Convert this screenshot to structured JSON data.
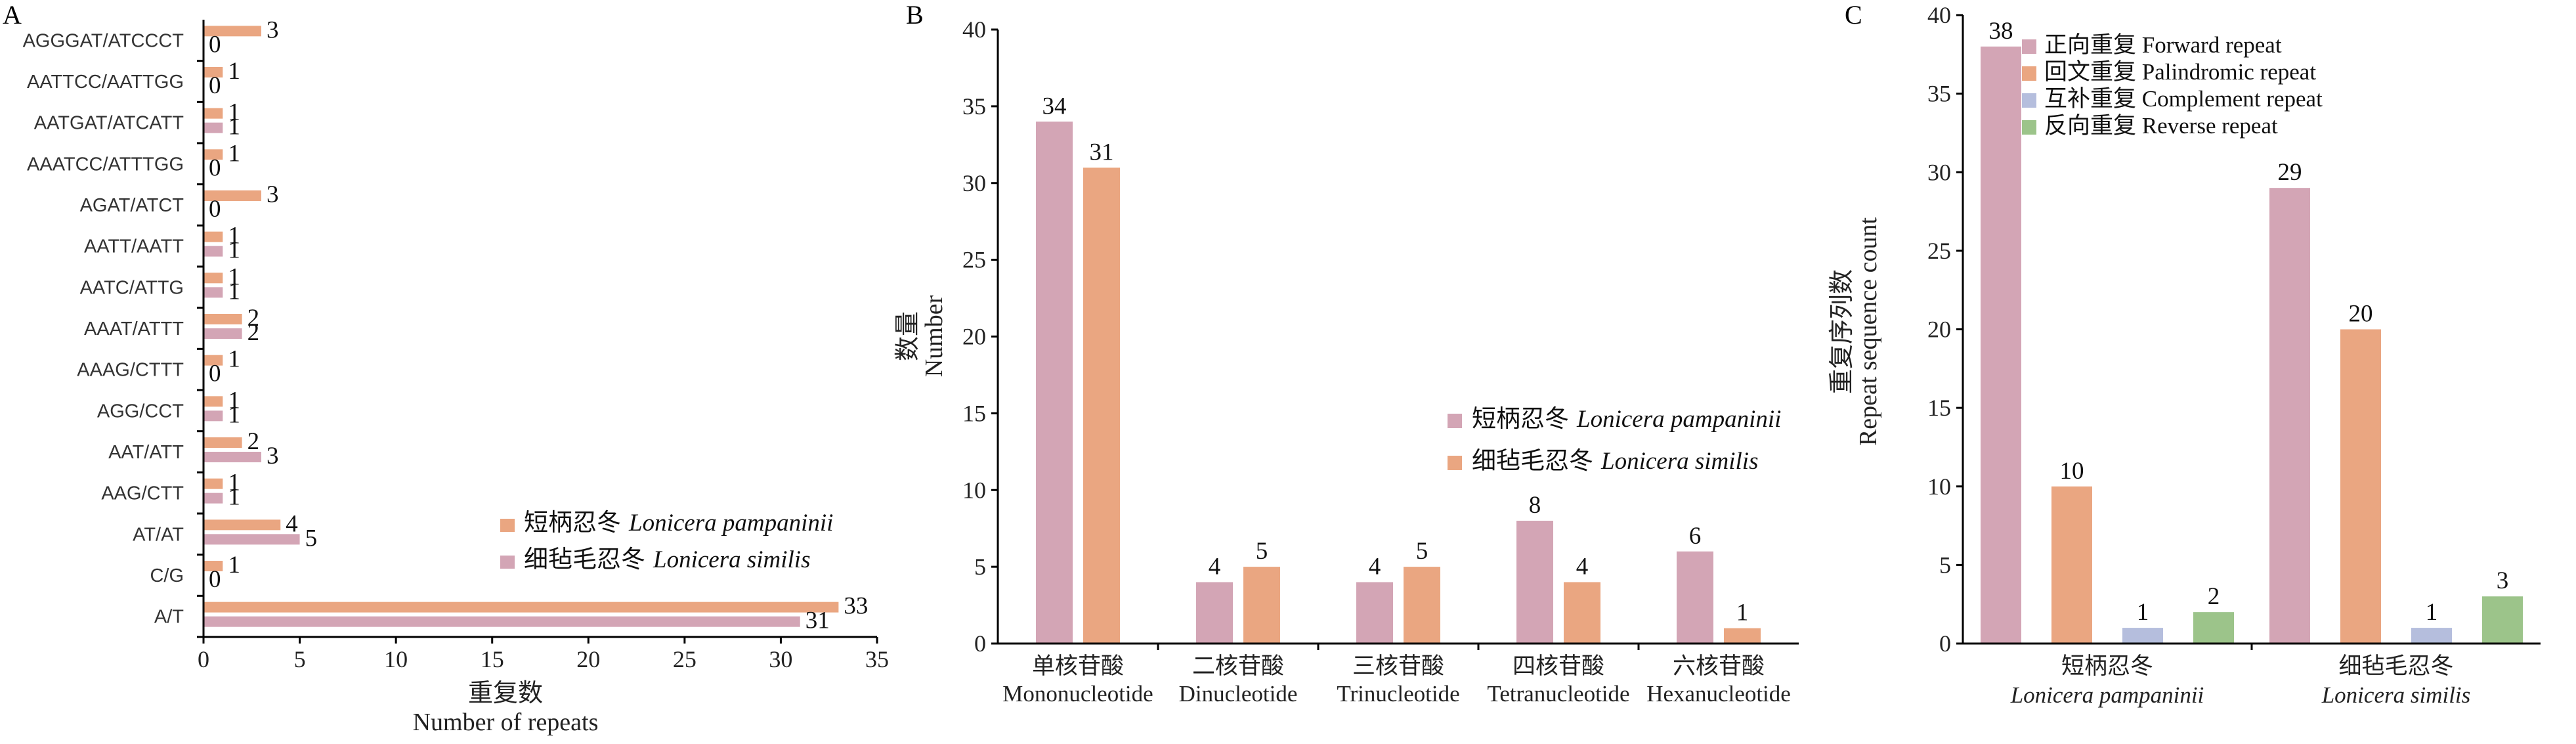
{
  "panels": [
    {
      "letter": "A"
    },
    {
      "letter": "B"
    },
    {
      "letter": "C"
    }
  ],
  "chart_data": [
    {
      "type": "bar",
      "orientation": "horizontal",
      "categories": [
        "A/T",
        "C/G",
        "AT/AT",
        "AAG/CTT",
        "AAT/ATT",
        "AGG/CCT",
        "AAAG/CTTT",
        "AAAT/ATTT",
        "AATC/ATTG",
        "AATT/AATT",
        "AGAT/ATCT",
        "AAATCC/ATTTGG",
        "AATGAT/ATCATT",
        "AATTCC/AATTGG",
        "AGGGAT/ATCCCT"
      ],
      "series": [
        {
          "name": "短柄忍冬 Lonicera pampaninii",
          "name_cn": "短柄忍冬",
          "name_latin": "Lonicera pampaninii",
          "color": "#EAA681",
          "values": [
            33,
            1,
            4,
            1,
            2,
            1,
            1,
            2,
            1,
            1,
            3,
            1,
            1,
            1,
            3
          ]
        },
        {
          "name": "细毡毛忍冬 Lonicera similis",
          "name_cn": "细毡毛忍冬",
          "name_latin": "Lonicera similis",
          "color": "#D3A5B5",
          "values": [
            31,
            0,
            5,
            1,
            3,
            1,
            0,
            2,
            1,
            1,
            0,
            0,
            1,
            0,
            0
          ]
        }
      ],
      "xlabel_cn": "重复数",
      "xlabel_en": "Number of repeats",
      "xlim": [
        0,
        35
      ],
      "xticks": [
        "0",
        "5",
        "10",
        "15",
        "20",
        "25",
        "30",
        "35"
      ],
      "legend_position": "bottom-right"
    },
    {
      "type": "bar",
      "categories_cn": [
        "单核苷酸",
        "二核苷酸",
        "三核苷酸",
        "四核苷酸",
        "六核苷酸"
      ],
      "categories_en": [
        "Mononucleotide",
        "Dinucleotide",
        "Trinucleotide",
        "Tetranucleotide",
        "Hexanucleotide"
      ],
      "series": [
        {
          "name": "短柄忍冬 Lonicera pampaninii",
          "name_cn": "短柄忍冬",
          "name_latin": "Lonicera pampaninii",
          "color": "#D3A5B5",
          "values": [
            34,
            4,
            4,
            8,
            6
          ]
        },
        {
          "name": "细毡毛忍冬 Lonicera similis",
          "name_cn": "细毡毛忍冬",
          "name_latin": "Lonicera similis",
          "color": "#EAA681",
          "values": [
            31,
            5,
            5,
            4,
            1
          ]
        }
      ],
      "ylabel_cn": "数量",
      "ylabel_en": "Number",
      "ylim": [
        0,
        40
      ],
      "yticks": [
        "0",
        "5",
        "10",
        "15",
        "20",
        "25",
        "30",
        "35",
        "40"
      ],
      "legend_position": "right"
    },
    {
      "type": "bar",
      "categories_cn": [
        "短柄忍冬",
        "细毡毛忍冬"
      ],
      "categories_latin": [
        "Lonicera pampaninii",
        "Lonicera similis"
      ],
      "series": [
        {
          "name": "正向重复 Forward repeat",
          "color": "#D3A5B5",
          "values": [
            38,
            29
          ]
        },
        {
          "name": "回文重复 Palindromic repeat",
          "color": "#EAA681",
          "values": [
            10,
            20
          ]
        },
        {
          "name": "互补重复 Complement repeat",
          "color": "#B5BEDD",
          "values": [
            1,
            1
          ]
        },
        {
          "name": "反向重复 Reverse repeat",
          "color": "#9CC48A",
          "values": [
            2,
            3
          ]
        }
      ],
      "ylabel_cn": "重复序列数",
      "ylabel_en": "Repeat sequence count",
      "ylim": [
        0,
        40
      ],
      "yticks": [
        "0",
        "5",
        "10",
        "15",
        "20",
        "25",
        "30",
        "35",
        "40"
      ],
      "legend_position": "top-left"
    }
  ]
}
